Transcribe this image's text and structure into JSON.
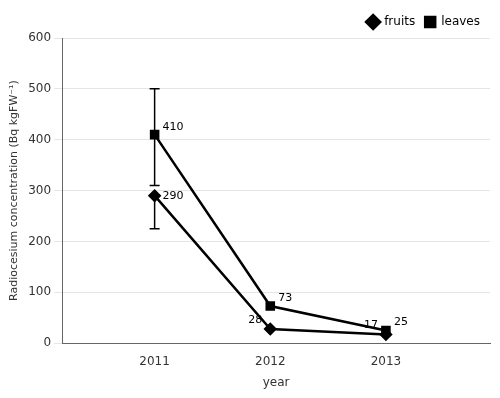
{
  "chart_data": {
    "type": "line",
    "x": [
      2011,
      2012,
      2013
    ],
    "xlabel": "year",
    "ylabel": "Radiocesium concentration (Bq kgFW⁻¹)",
    "xlim": [
      2010.2,
      2013.9
    ],
    "xticks": [
      2011,
      2012,
      2013
    ],
    "ylim": [
      0,
      600
    ],
    "yticks": [
      0,
      100,
      200,
      300,
      400,
      500,
      600
    ],
    "grid": "y",
    "legend": "upper right",
    "data_labels": true,
    "series": [
      {
        "name": "fruits",
        "color": "#000000",
        "marker": "diamond",
        "line_style": "solid",
        "values": [
          290,
          28,
          17
        ],
        "yerr_lower": [
          65,
          0,
          0
        ],
        "yerr_upper": [
          0,
          0,
          0
        ]
      },
      {
        "name": "leaves",
        "color": "#000000",
        "marker": "square",
        "line_style": "solid",
        "values": [
          410,
          73,
          25
        ],
        "yerr_lower": [
          100,
          0,
          0
        ],
        "yerr_upper": [
          90,
          0,
          0
        ]
      }
    ]
  }
}
